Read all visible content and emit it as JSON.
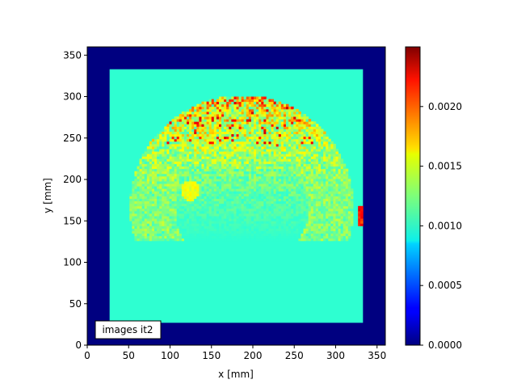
{
  "chart_data": {
    "type": "heatmap",
    "xlabel": "x [mm]",
    "ylabel": "y [mm]",
    "xlim": [
      0,
      360
    ],
    "ylim": [
      0,
      360
    ],
    "xticks": [
      "0",
      "50",
      "100",
      "150",
      "200",
      "250",
      "300",
      "350"
    ],
    "yticks": [
      "0",
      "50",
      "100",
      "150",
      "200",
      "250",
      "300",
      "350"
    ],
    "annotation": "images it2",
    "colormap": "jet",
    "colorbar": {
      "range": [
        0,
        0.0025
      ],
      "ticks": [
        "0.0000",
        "0.0005",
        "0.0010",
        "0.0015",
        "0.0020"
      ]
    },
    "image": {
      "inner_region_x": [
        27,
        333
      ],
      "inner_region_y": [
        27,
        333
      ],
      "background_value": 0.0,
      "baseline_value": 0.00105,
      "hot_arc": {
        "center_x": 185,
        "center_y": 165,
        "inner_radius": 80,
        "outer_radius": 135,
        "peak_value": 0.0023
      },
      "hot_spot": {
        "x": 123,
        "y": 185,
        "value": 0.0016
      },
      "edge_spot": {
        "x": 330,
        "y": 155,
        "value": 0.0023
      }
    }
  }
}
